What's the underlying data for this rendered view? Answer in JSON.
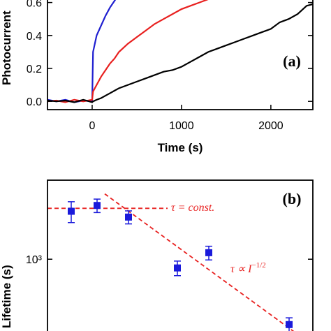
{
  "chart_data": [
    {
      "type": "line",
      "panel_label": "(a)",
      "xlabel": "Time (s)",
      "ylabel": "Photocurrent",
      "x": [
        -500,
        -400,
        -300,
        -200,
        -100,
        0,
        10,
        50,
        100,
        150,
        200,
        250,
        300,
        400,
        500,
        600,
        700,
        800,
        900,
        1000,
        1100,
        1200,
        1300,
        1400,
        1500,
        1600,
        1700,
        1800,
        1900,
        2000,
        2100,
        2200,
        2300,
        2400,
        2470
      ],
      "xlim": [
        -500,
        2470
      ],
      "xticks": [
        0,
        1000,
        2000
      ],
      "ylim": [
        -0.05,
        0.7
      ],
      "yticks": [
        {
          "value": 0,
          "label": "0.0"
        },
        0.2,
        0.4,
        0.6
      ],
      "series": [
        {
          "color": "#1f1fd0",
          "values": [
            0.01,
            0.0,
            0.01,
            -0.005,
            0.005,
            0,
            0.3,
            0.4,
            0.46,
            0.52,
            0.57,
            0.61,
            0.65,
            null,
            null,
            null,
            null,
            null,
            null,
            null,
            null,
            null,
            null,
            null,
            null,
            null,
            null,
            null,
            null,
            null,
            null,
            null,
            null,
            null,
            null
          ]
        },
        {
          "color": "#e8201f",
          "values": [
            0,
            0.005,
            -0.005,
            0.01,
            0,
            0.01,
            0.06,
            0.1,
            0.15,
            0.19,
            0.23,
            0.26,
            0.3,
            0.35,
            0.39,
            0.43,
            0.47,
            0.5,
            0.53,
            0.56,
            0.58,
            0.6,
            0.62,
            0.65,
            null,
            null,
            null,
            null,
            null,
            null,
            null,
            null,
            null,
            null,
            null
          ]
        },
        {
          "color": "#000000",
          "values": [
            0.005,
            0,
            0.005,
            -0.005,
            0.01,
            -0.005,
            0,
            0.01,
            0.02,
            0.035,
            0.05,
            0.065,
            0.08,
            0.1,
            0.12,
            0.14,
            0.16,
            0.18,
            0.19,
            0.21,
            0.24,
            0.27,
            0.3,
            0.32,
            0.34,
            0.36,
            0.38,
            0.4,
            0.42,
            0.44,
            0.48,
            0.5,
            0.53,
            0.58,
            0.59
          ]
        }
      ]
    },
    {
      "type": "scatter",
      "panel_label": "(b)",
      "ylabel": "Lifetime (s)",
      "log_y": true,
      "xlim": [
        0,
        38
      ],
      "ylim": [
        300,
        3500
      ],
      "yticks": [
        {
          "value": 1000,
          "label": "10³"
        }
      ],
      "series": [
        {
          "color": "#1a1adb",
          "x": [
            3.4,
            7.1,
            11.6,
            18.6,
            23.1,
            34.6
          ],
          "values": [
            2138,
            2344,
            1950,
            871,
            1109,
            355
          ],
          "errors": [
            350,
            250,
            200,
            100,
            120,
            40
          ]
        }
      ],
      "fits": [
        {
          "color": "#e8201f",
          "x": [
            0,
            17.2
          ],
          "values": [
            2240,
            2240
          ]
        },
        {
          "color": "#e8201f",
          "x": [
            8.2,
            36.2
          ],
          "values": [
            2818,
            295
          ]
        }
      ],
      "annotations": [
        {
          "text": "τ = const."
        },
        {
          "text": "τ ∝ I",
          "superscript": "−1/2"
        }
      ]
    }
  ]
}
